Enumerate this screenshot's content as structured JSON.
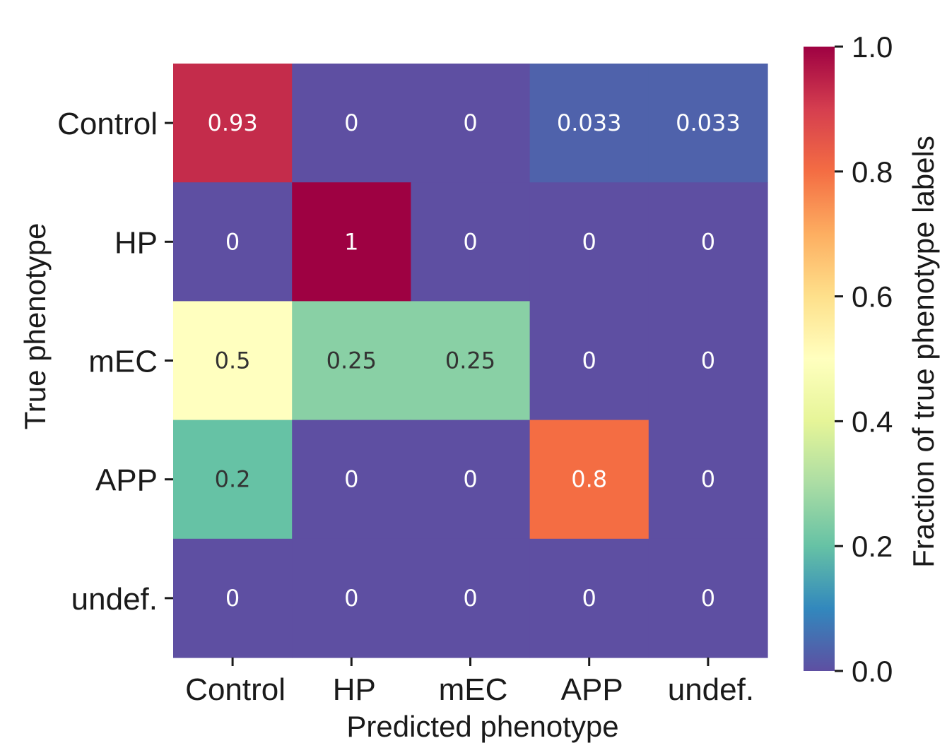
{
  "chart_data": {
    "type": "heatmap",
    "title": "",
    "xlabel": "Predicted phenotype",
    "ylabel": "True phenotype",
    "x_categories": [
      "Control",
      "HP",
      "mEC",
      "APP",
      "undef."
    ],
    "y_categories": [
      "Control",
      "HP",
      "mEC",
      "APP",
      "undef."
    ],
    "values": [
      [
        0.93,
        0,
        0,
        0.033,
        0.033
      ],
      [
        0,
        1,
        0,
        0,
        0
      ],
      [
        0.5,
        0.25,
        0.25,
        0,
        0
      ],
      [
        0.2,
        0,
        0,
        0.8,
        0
      ],
      [
        0,
        0,
        0,
        0,
        0
      ]
    ],
    "cell_labels": [
      [
        "0.93",
        "0",
        "0",
        "0.033",
        "0.033"
      ],
      [
        "0",
        "1",
        "0",
        "0",
        "0"
      ],
      [
        "0.5",
        "0.25",
        "0.25",
        "0",
        "0"
      ],
      [
        "0.2",
        "0",
        "0",
        "0.8",
        "0"
      ],
      [
        "0",
        "0",
        "0",
        "0",
        "0"
      ]
    ],
    "colormap": "Spectral_r",
    "colorbar": {
      "label": "Fraction of true phenotype labels",
      "range": [
        0,
        1
      ],
      "ticks": [
        0.0,
        0.2,
        0.4,
        0.6,
        0.8,
        1.0
      ],
      "tick_labels": [
        "0.0",
        "0.2",
        "0.4",
        "0.6",
        "0.8",
        "1.0"
      ]
    },
    "colors": {
      "light_text": "#ffffff",
      "dark_text": "#333333"
    }
  }
}
